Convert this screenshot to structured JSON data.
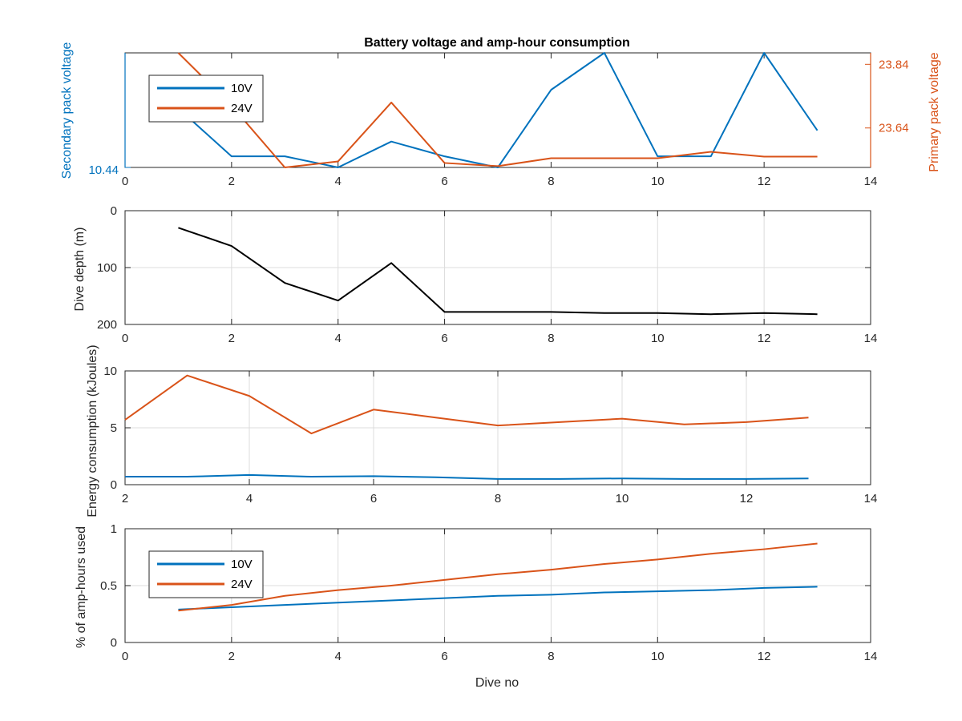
{
  "figure": {
    "title": "Battery voltage and amp-hour consumption",
    "colors": {
      "v10": "#0072BD",
      "v24": "#D95319",
      "depth": "#000000",
      "grid": "#dcdcdc",
      "axis": "#262626"
    }
  },
  "chart_data": [
    {
      "type": "line",
      "title": "Battery voltage and amp-hour consumption",
      "xlabel": "",
      "xlim": [
        0,
        14
      ],
      "xticks": [
        0,
        2,
        4,
        6,
        8,
        10,
        12,
        14
      ],
      "grid": false,
      "legend": {
        "position": "top-left",
        "entries": [
          "10V",
          "24V"
        ]
      },
      "left_axis": {
        "label": "Secondary pack voltage",
        "ticks": [
          "10.44"
        ],
        "ylim": [
          10.44,
          10.75
        ]
      },
      "right_axis": {
        "label": "Primary pack voltage",
        "ticks": [
          "23.64",
          "23.84"
        ],
        "ylim": [
          23.516,
          23.876
        ]
      },
      "series": [
        {
          "name": "10V",
          "axis": "left",
          "x": [
            1,
            2,
            3,
            4,
            5,
            6,
            7,
            8,
            9,
            10,
            11,
            12,
            13
          ],
          "y": [
            10.6,
            10.47,
            10.47,
            10.44,
            10.51,
            10.47,
            10.44,
            10.65,
            10.75,
            10.47,
            10.47,
            10.75,
            10.54
          ]
        },
        {
          "name": "24V",
          "axis": "right",
          "x": [
            1,
            2,
            3,
            4,
            5,
            6,
            7,
            8,
            9,
            10,
            11,
            12,
            13
          ],
          "y": [
            23.876,
            23.71,
            23.516,
            23.535,
            23.72,
            23.53,
            23.52,
            23.545,
            23.545,
            23.545,
            23.565,
            23.55,
            23.55
          ]
        }
      ]
    },
    {
      "type": "line",
      "ylabel": "Dive depth (m)",
      "xlim": [
        0,
        14
      ],
      "ylim": [
        0,
        200
      ],
      "y_reversed": true,
      "xticks": [
        0,
        2,
        4,
        6,
        8,
        10,
        12,
        14
      ],
      "yticks": [
        0,
        100,
        200
      ],
      "grid": true,
      "series": [
        {
          "x": [
            1,
            2,
            3,
            4,
            5,
            6,
            7,
            8,
            9,
            10,
            11,
            12,
            13
          ],
          "y": [
            30,
            62,
            127,
            158,
            92,
            178,
            178,
            178,
            180,
            180,
            182,
            180,
            182
          ]
        }
      ]
    },
    {
      "type": "line",
      "ylabel": "Energy consumption (kJoules)",
      "xlim": [
        2,
        14
      ],
      "ylim": [
        0,
        10
      ],
      "xticks": [
        2,
        4,
        6,
        8,
        10,
        12,
        14
      ],
      "yticks": [
        0,
        5,
        10
      ],
      "grid": true,
      "series": [
        {
          "name": "24V",
          "x": [
            2,
            3,
            4,
            5,
            6,
            7,
            8,
            9,
            10,
            11,
            12,
            13
          ],
          "y": [
            5.7,
            9.6,
            7.8,
            4.5,
            6.6,
            5.9,
            5.2,
            5.5,
            5.8,
            5.3,
            5.5,
            5.9
          ]
        },
        {
          "name": "10V",
          "x": [
            2,
            3,
            4,
            5,
            6,
            7,
            8,
            9,
            10,
            11,
            12,
            13
          ],
          "y": [
            0.7,
            0.7,
            0.85,
            0.7,
            0.75,
            0.65,
            0.5,
            0.5,
            0.55,
            0.5,
            0.5,
            0.55
          ]
        }
      ]
    },
    {
      "type": "line",
      "ylabel": "% of amp-hours used",
      "xlabel": "Dive no",
      "xlim": [
        0,
        14
      ],
      "ylim": [
        0,
        1
      ],
      "xticks": [
        0,
        2,
        4,
        6,
        8,
        10,
        12,
        14
      ],
      "yticks": [
        0,
        0.5,
        1
      ],
      "grid": true,
      "legend": {
        "position": "top-left",
        "entries": [
          "10V",
          "24V"
        ]
      },
      "series": [
        {
          "name": "10V",
          "x": [
            1,
            2,
            3,
            4,
            5,
            6,
            7,
            8,
            9,
            10,
            11,
            12,
            13
          ],
          "y": [
            0.29,
            0.31,
            0.33,
            0.35,
            0.37,
            0.39,
            0.41,
            0.42,
            0.44,
            0.45,
            0.46,
            0.48,
            0.49
          ]
        },
        {
          "name": "24V",
          "x": [
            1,
            2,
            3,
            4,
            5,
            6,
            7,
            8,
            9,
            10,
            11,
            12,
            13
          ],
          "y": [
            0.28,
            0.33,
            0.41,
            0.46,
            0.5,
            0.55,
            0.6,
            0.64,
            0.69,
            0.73,
            0.78,
            0.82,
            0.87
          ]
        }
      ]
    }
  ]
}
